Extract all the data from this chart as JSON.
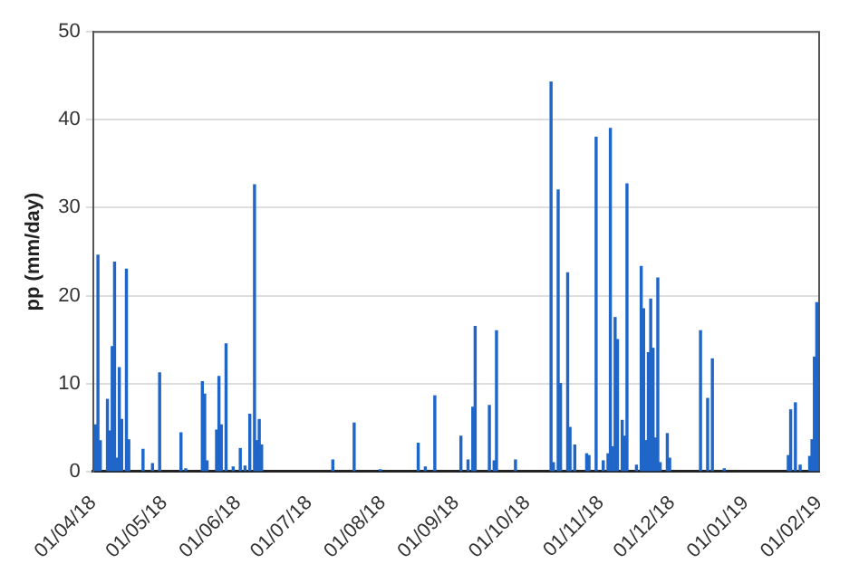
{
  "chart_data": {
    "type": "bar",
    "ylabel": "pp (mm/day)",
    "color": "#1f66c8",
    "x": [
      "2018-04-02",
      "2018-04-03",
      "2018-04-04",
      "2018-04-07",
      "2018-04-08",
      "2018-04-09",
      "2018-04-10",
      "2018-04-11",
      "2018-04-12",
      "2018-04-13",
      "2018-04-15",
      "2018-04-16",
      "2018-04-22",
      "2018-04-26",
      "2018-04-29",
      "2018-05-08",
      "2018-05-10",
      "2018-05-17",
      "2018-05-18",
      "2018-05-19",
      "2018-05-23",
      "2018-05-24",
      "2018-05-25",
      "2018-05-27",
      "2018-05-30",
      "2018-06-02",
      "2018-06-04",
      "2018-06-06",
      "2018-06-08",
      "2018-06-09",
      "2018-06-10",
      "2018-06-11",
      "2018-07-11",
      "2018-07-20",
      "2018-07-31",
      "2018-08-16",
      "2018-08-19",
      "2018-08-23",
      "2018-09-03",
      "2018-09-06",
      "2018-09-08",
      "2018-09-09",
      "2018-09-15",
      "2018-09-17",
      "2018-09-18",
      "2018-09-26",
      "2018-10-11",
      "2018-10-12",
      "2018-10-14",
      "2018-10-15",
      "2018-10-18",
      "2018-10-19",
      "2018-10-21",
      "2018-10-26",
      "2018-10-27",
      "2018-10-30",
      "2018-11-02",
      "2018-11-04",
      "2018-11-05",
      "2018-11-06",
      "2018-11-07",
      "2018-11-08",
      "2018-11-10",
      "2018-11-11",
      "2018-11-12",
      "2018-11-16",
      "2018-11-18",
      "2018-11-19",
      "2018-11-20",
      "2018-11-21",
      "2018-11-22",
      "2018-11-23",
      "2018-11-24",
      "2018-11-25",
      "2018-11-26",
      "2018-11-29",
      "2018-11-30",
      "2018-12-13",
      "2018-12-16",
      "2018-12-18",
      "2018-12-23",
      "2019-01-19",
      "2019-01-20",
      "2019-01-22",
      "2019-01-24",
      "2019-01-28",
      "2019-01-29",
      "2019-01-30",
      "2019-01-31"
    ],
    "values": [
      5.3,
      24.6,
      3.5,
      8.2,
      4.6,
      14.2,
      23.8,
      1.5,
      11.8,
      5.9,
      23,
      3.6,
      2.5,
      0.9,
      11.2,
      4.4,
      0.3,
      10.2,
      8.8,
      1.2,
      4.7,
      10.8,
      5.3,
      14.5,
      0.5,
      2.6,
      0.6,
      6.5,
      32.6,
      3.5,
      5.9,
      3,
      1.3,
      5.5,
      0.2,
      3.2,
      0.5,
      8.6,
      4,
      1.3,
      7.3,
      16.5,
      7.5,
      1.2,
      16,
      1.3,
      44.3,
      1,
      32,
      10,
      22.6,
      5,
      3,
      2,
      1.8,
      38,
      1.2,
      2,
      39,
      2.8,
      17.5,
      15,
      5.8,
      4,
      32.7,
      0.7,
      23.3,
      18.5,
      3.5,
      13.5,
      19.6,
      14,
      3.8,
      22,
      1,
      4.3,
      1.5,
      16,
      8.3,
      12.8,
      0.3,
      1.8,
      7,
      7.8,
      0.7,
      1.7,
      3.6,
      13,
      19.2
    ],
    "xlim": [
      "2018-04-01",
      "2019-02-01"
    ],
    "xticks": [
      {
        "value": "2018-04-01",
        "label": "01/04/18"
      },
      {
        "value": "2018-05-01",
        "label": "01/05/18"
      },
      {
        "value": "2018-06-01",
        "label": "01/06/18"
      },
      {
        "value": "2018-07-01",
        "label": "01/07/18"
      },
      {
        "value": "2018-08-01",
        "label": "01/08/18"
      },
      {
        "value": "2018-09-01",
        "label": "01/09/18"
      },
      {
        "value": "2018-10-01",
        "label": "01/10/18"
      },
      {
        "value": "2018-11-01",
        "label": "01/11/18"
      },
      {
        "value": "2018-12-01",
        "label": "01/12/18"
      },
      {
        "value": "2019-01-01",
        "label": "01/01/19"
      },
      {
        "value": "2019-02-01",
        "label": "01/02/19"
      }
    ],
    "ylim": [
      0,
      50
    ],
    "yticks": [
      0,
      10,
      20,
      30,
      40,
      50
    ],
    "grid": "y",
    "legend": false
  }
}
